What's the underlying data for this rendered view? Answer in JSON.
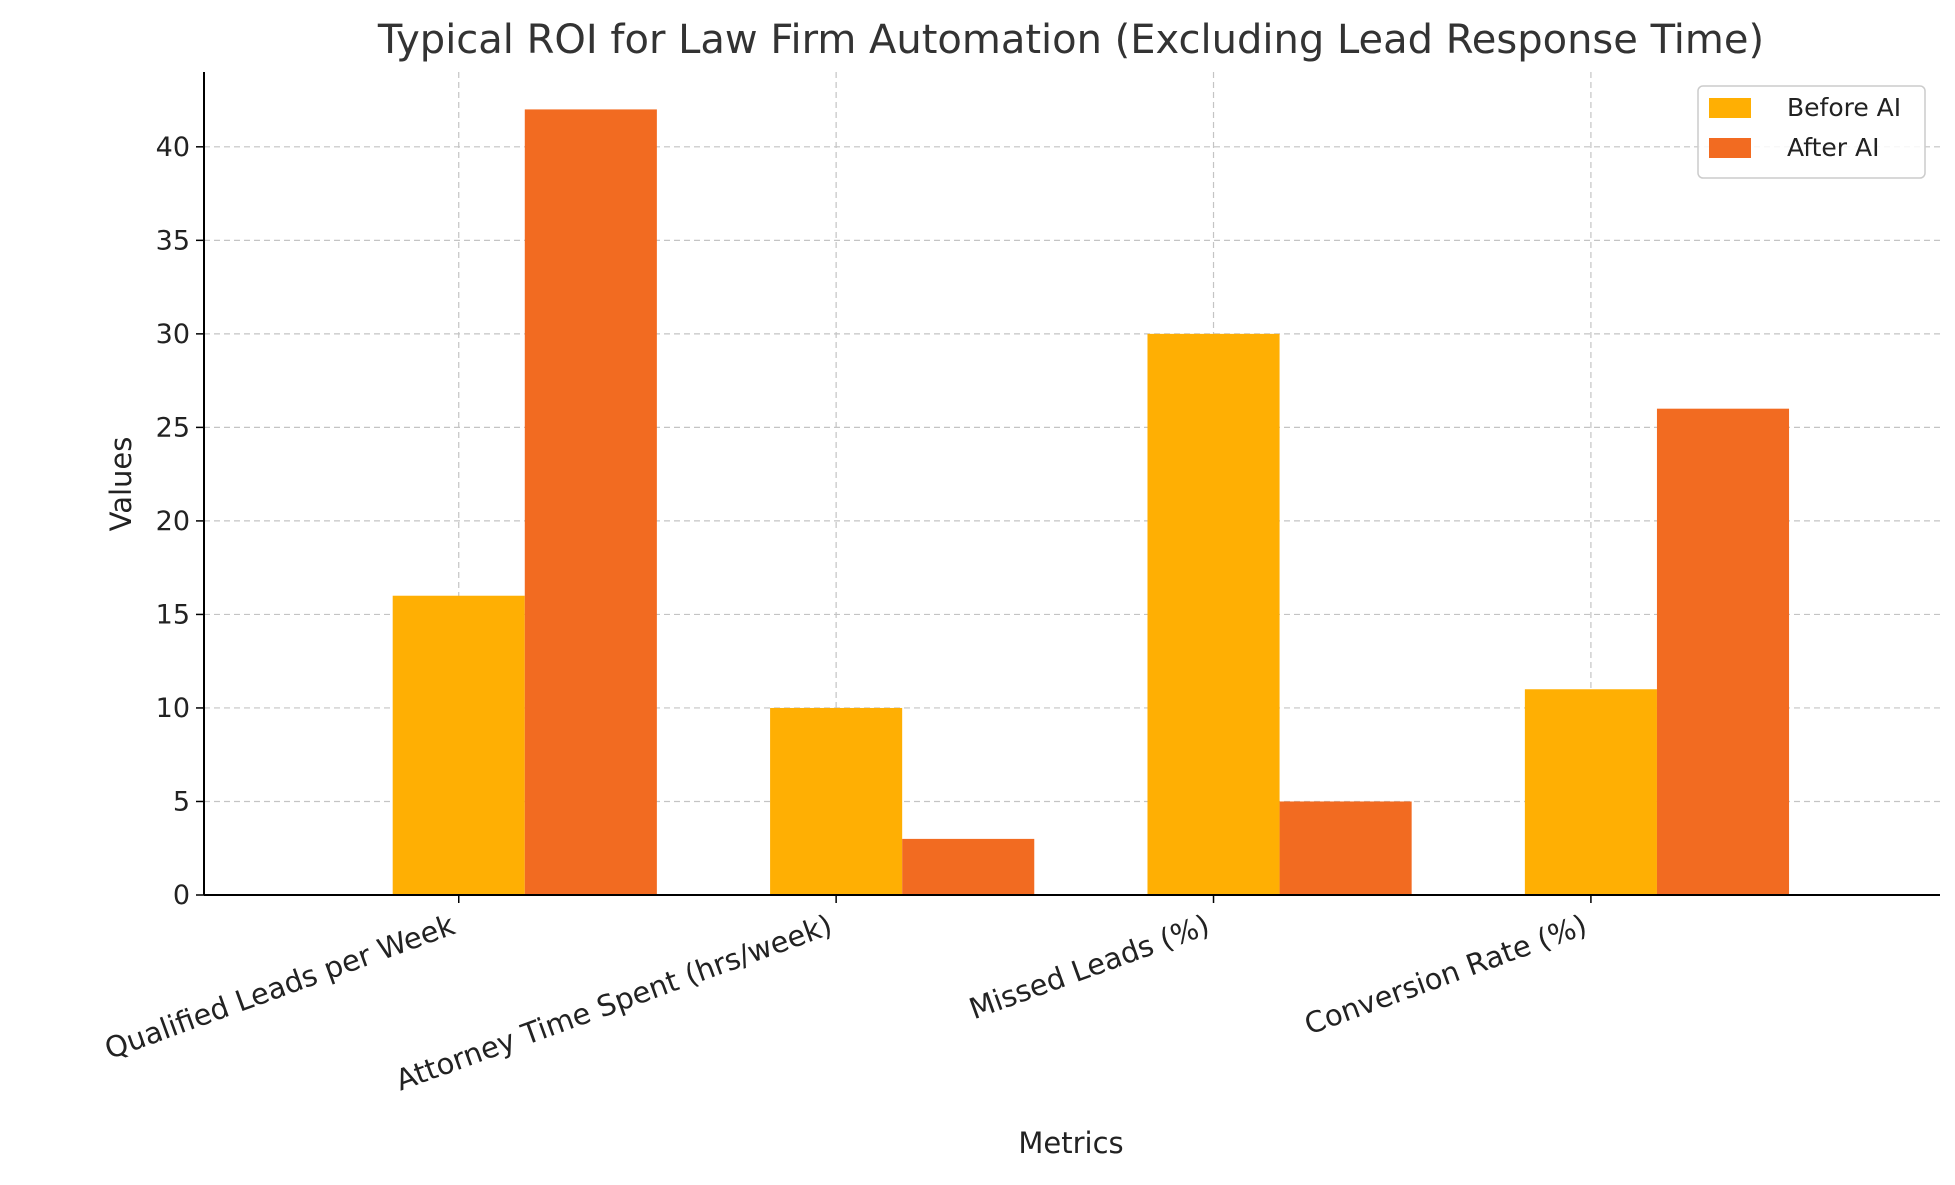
{
  "chart_data": {
    "type": "bar",
    "title": "Typical ROI for Law Firm Automation (Excluding Lead Response Time)",
    "xlabel": "Metrics",
    "ylabel": "Values",
    "categories": [
      "Qualified Leads per Week",
      "Attorney Time Spent (hrs/week)",
      "Missed Leads (%)",
      "Conversion Rate (%)"
    ],
    "series": [
      {
        "name": "Before AI",
        "color": "#ffaf03",
        "values": [
          16,
          10,
          30,
          11
        ]
      },
      {
        "name": "After AI",
        "color": "#f26b21",
        "values": [
          42,
          3,
          5,
          26
        ]
      }
    ],
    "ylim": [
      0,
      44
    ],
    "yticks": [
      0,
      5,
      10,
      15,
      20,
      25,
      30,
      35,
      40
    ],
    "grid": true,
    "legend_position": "top-right"
  }
}
